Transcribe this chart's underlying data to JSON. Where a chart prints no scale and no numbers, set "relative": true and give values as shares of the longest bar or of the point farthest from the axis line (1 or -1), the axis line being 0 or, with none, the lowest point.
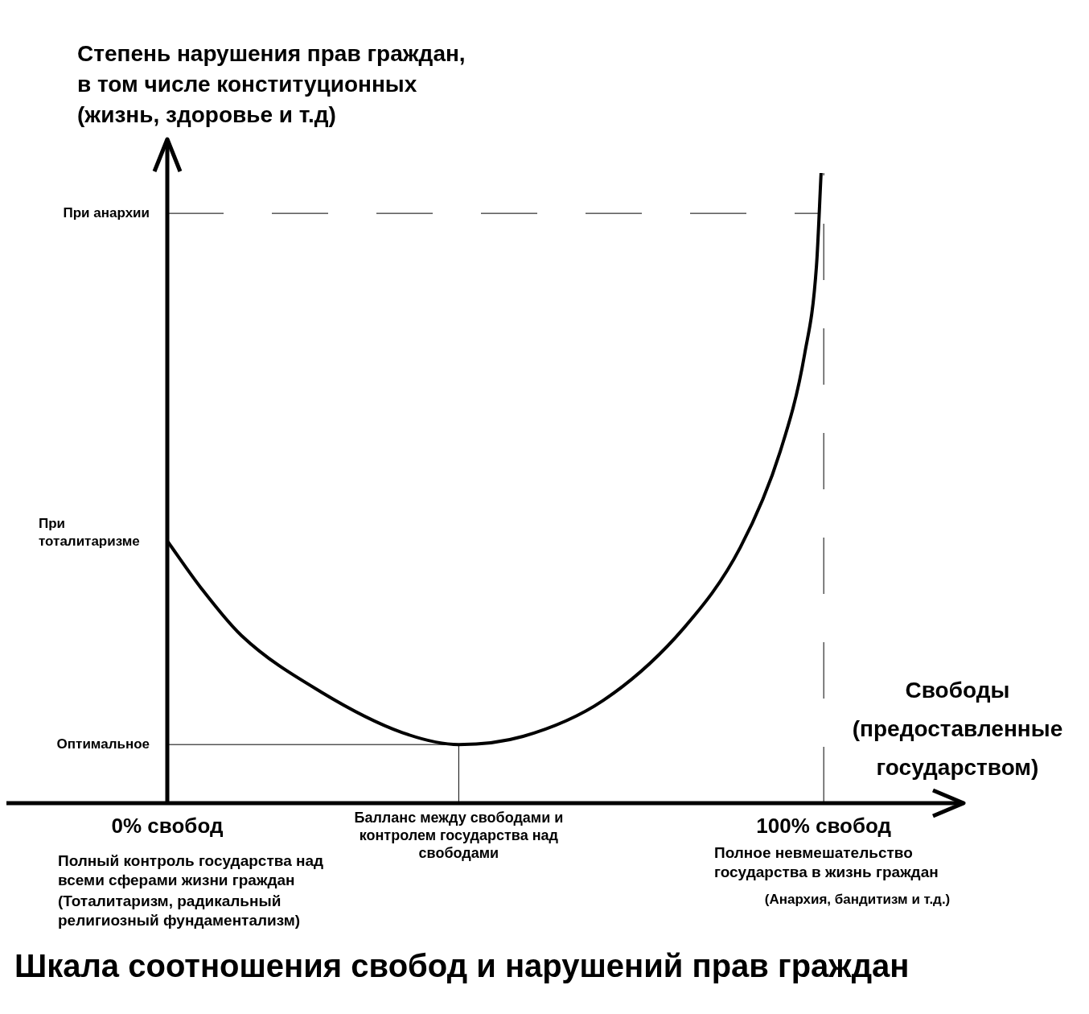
{
  "chart_data": {
    "type": "line",
    "relative": true,
    "title": "Шкала соотношения свобод и нарушений прав граждан",
    "ylabel": "Степень нарушения прав граждан, в том числе конституционных (жизнь, здоровье и т.д)",
    "xlabel": "Свободы (предоставленные государством)",
    "x": [
      0,
      5.1,
      11.3,
      23.5,
      35.8,
      44.4,
      54.2,
      66.4,
      78.7,
      87.3,
      93.4,
      97.1,
      98.9,
      99.6
    ],
    "series": [
      {
        "color": "#000000",
        "values": [
          0.416,
          0.342,
          0.266,
          0.176,
          0.112,
          0.093,
          0.106,
          0.163,
          0.278,
          0.406,
          0.559,
          0.713,
          0.853,
          1
        ]
      }
    ],
    "xlim": [
      0,
      121.3
    ],
    "xticks": [
      {
        "value": 0,
        "label": "0% свобод"
      },
      {
        "value": 100,
        "label": "100% свобод"
      }
    ],
    "ref_lines": [
      {
        "axis": "y",
        "value": 0.936,
        "label": "При анархии",
        "line_style": "dashed"
      },
      {
        "axis": "y",
        "value": 0.093,
        "label": "Оптимальное",
        "line_style": "solid"
      },
      {
        "axis": "x",
        "value": 44.4,
        "label": "Балланс между свободами и контролем государства над свободами",
        "line_style": "solid"
      },
      {
        "axis": "x",
        "value": 100,
        "label": null,
        "line_style": "dashed"
      }
    ],
    "annotations": [
      {
        "text": "При тоталитаризме",
        "x": 0,
        "y": 0.416
      },
      "Полный контроль государства над всеми сферами жизни граждан",
      "(Тоталитаризм, радикальный религиозный фундаментализм)",
      "Полное невмешательство государства в жизнь граждан",
      "(Анархия, бандитизм и т.д.)"
    ],
    "grid": false,
    "legend": false,
    "marker": "none"
  }
}
